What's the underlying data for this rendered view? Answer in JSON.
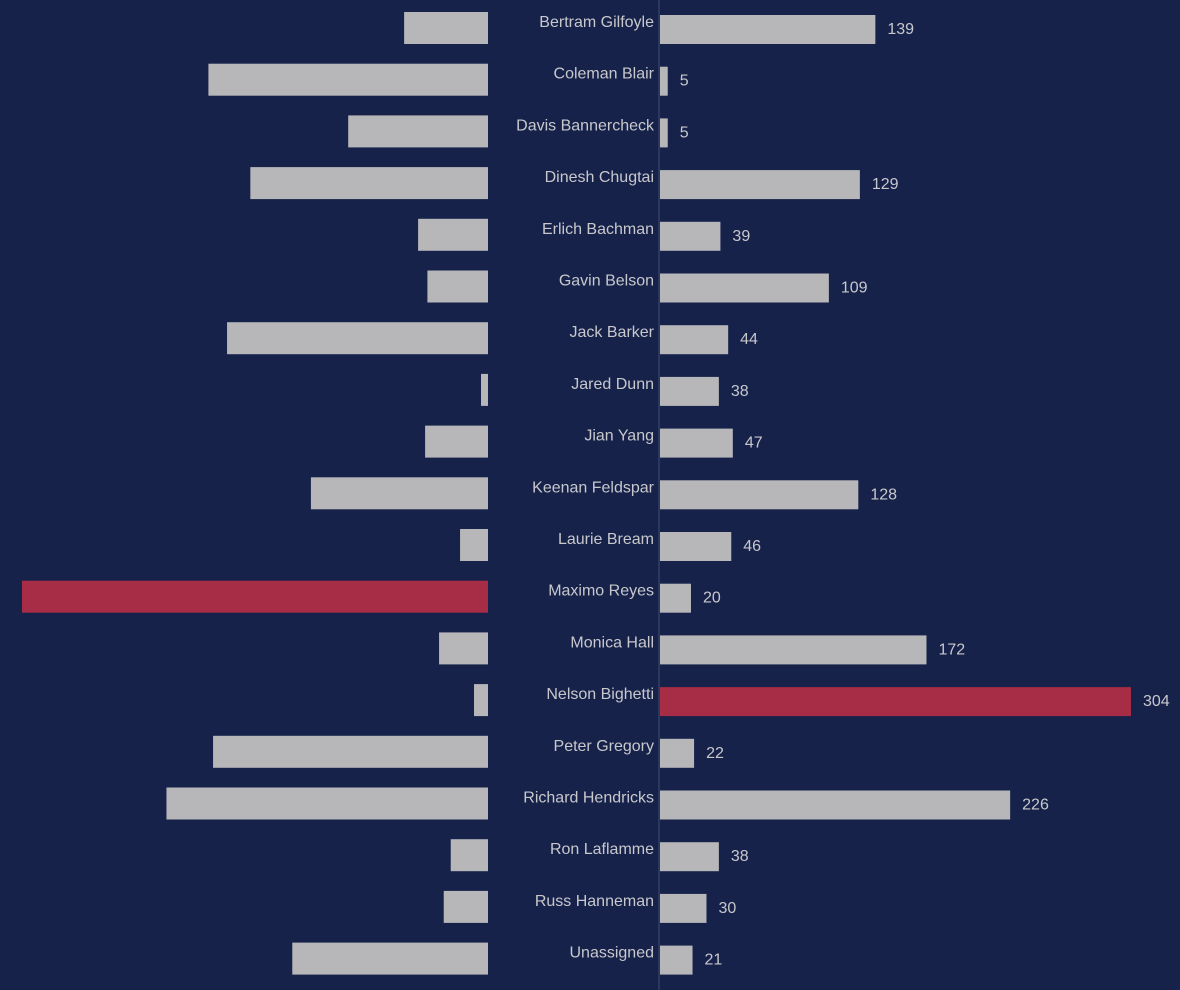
{
  "colors": {
    "background": "#16224a",
    "bar_default": "#b7b6b9",
    "bar_highlight": "#a72c45",
    "label_text": "#c8c8cc",
    "axis_line": "#3d4d75"
  },
  "chart_data": {
    "type": "bar",
    "layout": "diverging-horizontal",
    "categories": [
      "Bertram Gilfoyle",
      "Coleman Blair",
      "Davis Bannercheck",
      "Dinesh Chugtai",
      "Erlich Bachman",
      "Gavin Belson",
      "Jack Barker",
      "Jared Dunn",
      "Jian Yang",
      "Keenan Feldspar",
      "Laurie Bream",
      "Maximo Reyes",
      "Monica Hall",
      "Nelson Bighetti",
      "Peter Gregory",
      "Richard Hendricks",
      "Ron Laflamme",
      "Russ Hanneman",
      "Unassigned"
    ],
    "left_series": {
      "values": [
        18,
        60,
        30,
        51,
        15,
        13,
        56,
        1.5,
        13.5,
        38,
        6,
        100,
        10.5,
        3,
        59,
        69,
        8,
        9.5,
        42
      ],
      "highlight_index": 11,
      "data_labels_shown": false
    },
    "right_series": {
      "values": [
        139,
        5,
        5,
        129,
        39,
        109,
        44,
        38,
        47,
        128,
        46,
        20,
        172,
        304,
        22,
        226,
        38,
        30,
        21
      ],
      "highlight_index": 13,
      "data_labels_shown": true
    },
    "right_xlim": [
      0,
      304
    ],
    "left_xlim": [
      0,
      100
    ],
    "grid": false,
    "legend": "none",
    "title": "",
    "xlabel": "",
    "ylabel": ""
  }
}
